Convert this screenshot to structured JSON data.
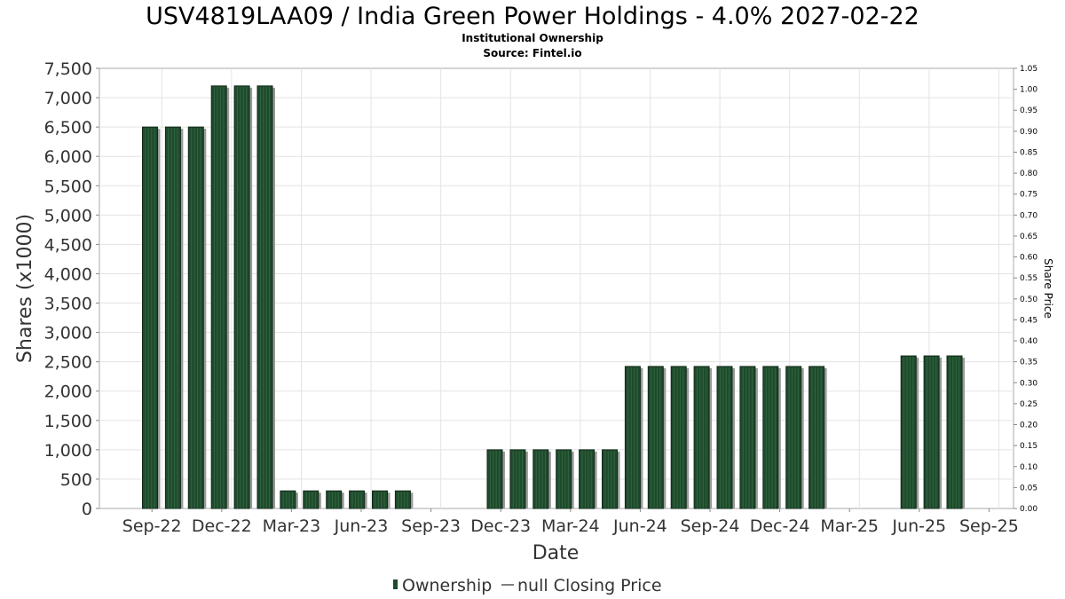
{
  "chart_data": {
    "type": "bar",
    "title": "USV4819LAA09 / India Green Power Holdings - 4.0% 2027-02-22",
    "subtitle": "Institutional Ownership",
    "source": "Source: Fintel.io",
    "xlabel": "Date",
    "ylabel": "Shares (x1000)",
    "y2label": "Share Price",
    "ylim": [
      0,
      7500
    ],
    "y2lim": [
      0,
      1.05
    ],
    "yticks": [
      "0",
      "500",
      "1,000",
      "1,500",
      "2,000",
      "2,500",
      "3,000",
      "3,500",
      "4,000",
      "4,500",
      "5,000",
      "5,500",
      "6,000",
      "6,500",
      "7,000",
      "7,500"
    ],
    "y2ticks": [
      "0.00",
      "0.05",
      "0.10",
      "0.15",
      "0.20",
      "0.25",
      "0.30",
      "0.35",
      "0.40",
      "0.45",
      "0.50",
      "0.55",
      "0.60",
      "0.65",
      "0.70",
      "0.75",
      "0.80",
      "0.85",
      "0.90",
      "0.95",
      "1.00",
      "1.05"
    ],
    "xticks": [
      "Sep-22",
      "Dec-22",
      "Mar-23",
      "Jun-23",
      "Sep-23",
      "Dec-23",
      "Mar-24",
      "Jun-24",
      "Sep-24",
      "Dec-24",
      "Mar-25",
      "Jun-25",
      "Sep-25"
    ],
    "grid": true,
    "legend_position": "bottom",
    "series": [
      {
        "name": "Ownership",
        "color": "#1f4a2c",
        "values": [
          6500,
          6500,
          6500,
          7200,
          7200,
          7200,
          300,
          300,
          300,
          300,
          300,
          300,
          null,
          null,
          null,
          1000,
          1000,
          1000,
          1000,
          1000,
          1000,
          2420,
          2420,
          2420,
          2420,
          2420,
          2420,
          2420,
          2420,
          2420,
          null,
          null,
          null,
          2600,
          2600,
          2600
        ]
      }
    ],
    "legend": [
      {
        "label": "Ownership",
        "marker": "bar"
      },
      {
        "label": "null Closing Price",
        "marker": "line"
      }
    ]
  }
}
